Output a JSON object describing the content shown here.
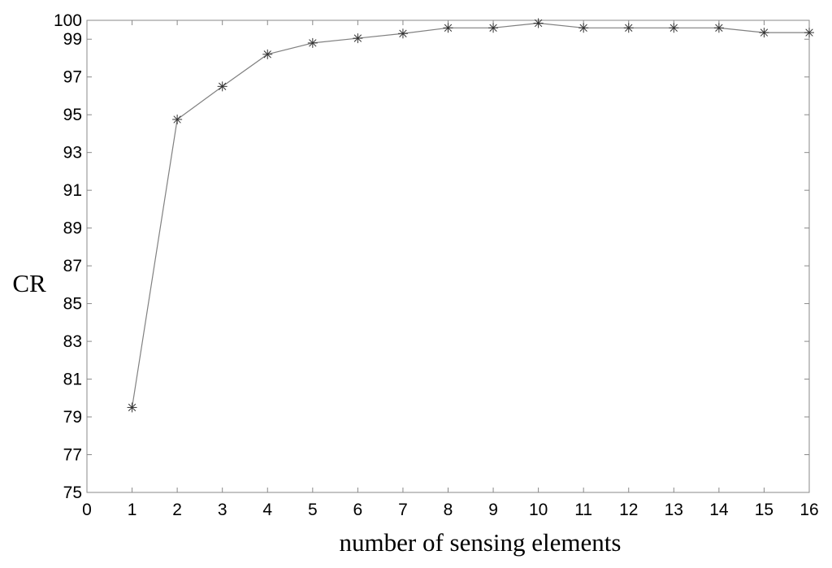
{
  "chart_data": {
    "type": "line",
    "title": "",
    "xlabel": "number of sensing elements",
    "ylabel": "CR",
    "xlim": [
      0,
      16
    ],
    "ylim": [
      75,
      100
    ],
    "xticks": [
      0,
      1,
      2,
      3,
      4,
      5,
      6,
      7,
      8,
      9,
      10,
      11,
      12,
      13,
      14,
      15,
      16
    ],
    "yticks": [
      75,
      77,
      79,
      81,
      83,
      85,
      87,
      89,
      91,
      93,
      95,
      97,
      99,
      100
    ],
    "grid": false,
    "legend": "none",
    "series": [
      {
        "marker": "asterisk",
        "color": "#808080",
        "marker_color": "#333333",
        "x": [
          1,
          2,
          3,
          4,
          5,
          6,
          7,
          8,
          9,
          10,
          11,
          12,
          13,
          14,
          15,
          16
        ],
        "y": [
          79.5,
          94.75,
          96.5,
          98.2,
          98.8,
          99.05,
          99.3,
          99.6,
          99.6,
          99.85,
          99.6,
          99.6,
          99.6,
          99.6,
          99.35,
          99.35
        ]
      }
    ]
  }
}
